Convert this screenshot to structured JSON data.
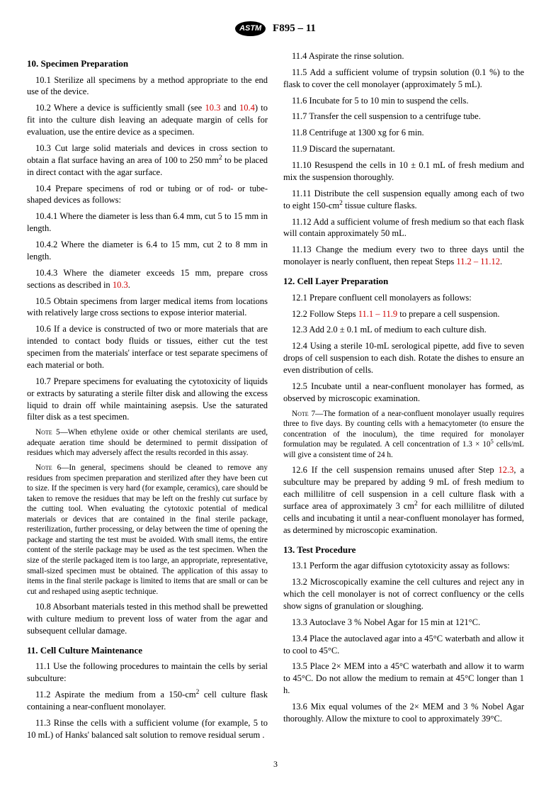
{
  "header": {
    "designation": "F895 – 11"
  },
  "page_number": "3",
  "sections": [
    {
      "num": "10.",
      "title": "Specimen Preparation",
      "paras": [
        {
          "key": "p10_1",
          "num": "10.1",
          "html": "Sterilize all specimens by a method appropriate to the end use of the device."
        },
        {
          "key": "p10_2",
          "num": "10.2",
          "html": "Where a device is sufficiently small (see <span class=\"ref\">10.3</span> and <span class=\"ref\">10.4</span>) to fit into the culture dish leaving an adequate margin of cells for evaluation, use the entire device as a specimen."
        },
        {
          "key": "p10_3",
          "num": "10.3",
          "html": "Cut large solid materials and devices in cross section to obtain a flat surface having an area of 100 to 250 mm<sup>2</sup> to be placed in direct contact with the agar surface."
        },
        {
          "key": "p10_4",
          "num": "10.4",
          "html": "Prepare specimens of rod or tubing or of rod- or tube-shaped devices as follows:"
        },
        {
          "key": "p10_4_1",
          "num": "10.4.1",
          "html": "Where the diameter is less than 6.4 mm, cut 5 to 15 mm in length."
        },
        {
          "key": "p10_4_2",
          "num": "10.4.2",
          "html": "Where the diameter is 6.4 to 15 mm, cut 2 to 8 mm in length."
        },
        {
          "key": "p10_4_3",
          "num": "10.4.3",
          "html": "Where the diameter exceeds 15 mm, prepare cross sections as described in <span class=\"ref\">10.3</span>."
        },
        {
          "key": "p10_5",
          "num": "10.5",
          "html": "Obtain specimens from larger medical items from locations with relatively large cross sections to expose interior material."
        },
        {
          "key": "p10_6",
          "num": "10.6",
          "html": "If a device is constructed of two or more materials that are intended to contact body fluids or tissues, either cut the test specimen from the materials' interface or test separate specimens of each material or both."
        },
        {
          "key": "p10_7",
          "num": "10.7",
          "html": "Prepare specimens for evaluating the cytotoxicity of liquids or extracts by saturating a sterile filter disk and allowing the excess liquid to drain off while maintaining asepsis. Use the saturated filter disk as a test specimen."
        }
      ],
      "notes": [
        {
          "key": "n5",
          "label": "Note 5",
          "html": "—When ethylene oxide or other chemical sterilants are used, adequate aeration time should be determined to permit dissipation of residues which may adversely affect the results recorded in this assay."
        },
        {
          "key": "n6",
          "label": "Note 6",
          "html": "—In general, specimens should be cleaned to remove any residues from specimen preparation and sterilized after they have been cut to size. If the specimen is very hard (for example, ceramics), care should be taken to remove the residues that may be left on the freshly cut surface by the cutting tool. When evaluating the cytotoxic potential of medical materials or devices that are contained in the final sterile package, resterilization, further processing, or delay between the time of opening the package and starting the test must be avoided. With small items, the entire content of the sterile package may be used as the test specimen. When the size of the sterile packaged item is too large, an appropriate, representative, small-sized specimen must be obtained. The application of this assay to items in the final sterile package is limited to items that are small or can be cut and reshaped using aseptic technique."
        }
      ],
      "tail_paras": [
        {
          "key": "p10_8",
          "num": "10.8",
          "html": "Absorbant materials tested in this method shall be prewetted with culture medium to prevent loss of water from the agar and subsequent cellular damage."
        }
      ]
    },
    {
      "num": "11.",
      "title": "Cell Culture Maintenance",
      "paras": [
        {
          "key": "p11_1",
          "num": "11.1",
          "html": "Use the following procedures to maintain the cells by serial subculture:"
        },
        {
          "key": "p11_2",
          "num": "11.2",
          "html": "Aspirate the medium from a 150-cm<sup>2</sup> cell culture flask containing a near-confluent monolayer."
        },
        {
          "key": "p11_3",
          "num": "11.3",
          "html": "Rinse the cells with a sufficient volume (for example, 5 to 10 mL) of Hanks' balanced salt solution to remove residual serum ."
        },
        {
          "key": "p11_4",
          "num": "11.4",
          "html": "Aspirate the rinse solution."
        },
        {
          "key": "p11_5",
          "num": "11.5",
          "html": "Add a sufficient volume of trypsin solution (0.1 %) to the flask to cover the cell monolayer (approximately 5 mL)."
        },
        {
          "key": "p11_6",
          "num": "11.6",
          "html": "Incubate for 5 to 10 min to suspend the cells."
        },
        {
          "key": "p11_7",
          "num": "11.7",
          "html": "Transfer the cell suspension to a centrifuge tube."
        },
        {
          "key": "p11_8",
          "num": "11.8",
          "html": "Centrifuge at 1300 xg for 6 min."
        },
        {
          "key": "p11_9",
          "num": "11.9",
          "html": "Discard the supernatant."
        },
        {
          "key": "p11_10",
          "num": "11.10",
          "html": "Resuspend the cells in 10 ± 0.1 mL of fresh medium and mix the suspension thoroughly."
        },
        {
          "key": "p11_11",
          "num": "11.11",
          "html": "Distribute the cell suspension equally among each of two to eight 150-cm<sup>2</sup> tissue culture flasks."
        },
        {
          "key": "p11_12",
          "num": "11.12",
          "html": "Add a sufficient volume of fresh medium so that each flask will contain approximately 50 mL."
        },
        {
          "key": "p11_13",
          "num": "11.13",
          "html": "Change the medium every two to three days until the monolayer is nearly confluent, then repeat Steps <span class=\"ref\">11.2 – 11.12</span>."
        }
      ]
    },
    {
      "num": "12.",
      "title": "Cell Layer Preparation",
      "paras": [
        {
          "key": "p12_1",
          "num": "12.1",
          "html": "Prepare confluent cell monolayers as follows:"
        },
        {
          "key": "p12_2",
          "num": "12.2",
          "html": "Follow Steps <span class=\"ref\">11.1 – 11.9</span> to prepare a cell suspension."
        },
        {
          "key": "p12_3",
          "num": "12.3",
          "html": "Add 2.0 ± 0.1 mL of medium to each culture dish."
        },
        {
          "key": "p12_4",
          "num": "12.4",
          "html": "Using a sterile 10-mL serological pipette, add five to seven drops of cell suspension to each dish. Rotate the dishes to ensure an even distribution of cells."
        },
        {
          "key": "p12_5",
          "num": "12.5",
          "html": "Incubate until a near-confluent monolayer has formed, as observed by microscopic examination."
        }
      ],
      "notes": [
        {
          "key": "n7",
          "label": "Note 7",
          "html": "—The formation of a near-confluent monolayer usually requires three to five days. By counting cells with a hemacytometer (to ensure the concentration of the inoculum), the time required for monolayer formulation may be regulated. A cell concentration of 1.3 × 10<sup>5</sup> cells/mL will give a consistent time of 24 h."
        }
      ],
      "tail_paras": [
        {
          "key": "p12_6",
          "num": "12.6",
          "html": "If the cell suspension remains unused after Step <span class=\"ref\">12.3</span>, a subculture may be prepared by adding 9 mL of fresh medium to each millilitre of cell suspension in a cell culture flask with a surface area of approximately 3 cm<sup>2</sup> for each millilitre of diluted cells and incubating it until a near-confluent monolayer has formed, as determined by microscopic examination."
        }
      ]
    },
    {
      "num": "13.",
      "title": "Test Procedure",
      "paras": [
        {
          "key": "p13_1",
          "num": "13.1",
          "html": "Perform the agar diffusion cytotoxicity assay as follows:"
        },
        {
          "key": "p13_2",
          "num": "13.2",
          "html": "Microscopically examine the cell cultures and reject any in which the cell monolayer is not of correct confluency or the cells show signs of granulation or sloughing."
        },
        {
          "key": "p13_3",
          "num": "13.3",
          "html": "Autoclave 3 % Nobel Agar for 15 min at 121°C."
        },
        {
          "key": "p13_4",
          "num": "13.4",
          "html": "Place the autoclaved agar into a 45°C waterbath and allow it to cool to 45°C."
        },
        {
          "key": "p13_5",
          "num": "13.5",
          "html": "Place 2× MEM into a 45°C waterbath and allow it to warm to 45°C. Do not allow the medium to remain at 45°C longer than 1 h."
        },
        {
          "key": "p13_6",
          "num": "13.6",
          "html": "Mix equal volumes of the 2× MEM and 3 % Nobel Agar thoroughly. Allow the mixture to cool to approximately 39°C."
        }
      ]
    }
  ]
}
